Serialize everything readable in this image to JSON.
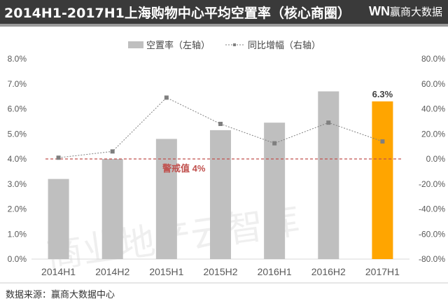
{
  "header": {
    "title": "2014H1-2017H1上海购物中心平均空置率（核心商圈）",
    "logo_mark": "WN",
    "logo_text": "赢商大数据"
  },
  "source": "数据来源：赢商大数据中心",
  "watermark": "商业地产云智库",
  "colors": {
    "bar": "#bfbfbf",
    "highlight": "#ffa500",
    "line": "#7f7f7f",
    "threshold": "#c0504d"
  },
  "chart_data": {
    "type": "bar",
    "title": "2014H1-2017H1上海购物中心平均空置率（核心商圈）",
    "categories": [
      "2014H1",
      "2014H2",
      "2015H1",
      "2015H2",
      "2016H1",
      "2016H2",
      "2017H1"
    ],
    "series": [
      {
        "name": "空置率（左轴）",
        "type": "bar",
        "axis": "left",
        "values": [
          3.2,
          4.0,
          4.8,
          5.15,
          5.45,
          6.7,
          6.3
        ]
      },
      {
        "name": "同比增幅（右轴）",
        "type": "line",
        "axis": "right",
        "values": [
          1,
          6,
          49,
          28,
          12.5,
          29,
          14
        ]
      }
    ],
    "left_axis": {
      "ylim": [
        0,
        8
      ],
      "ticks": [
        "0.0%",
        "1.0%",
        "2.0%",
        "3.0%",
        "4.0%",
        "5.0%",
        "6.0%",
        "7.0%",
        "8.0%"
      ]
    },
    "right_axis": {
      "ylim": [
        -80,
        80
      ],
      "ticks": [
        "-80.0%",
        "-60.0%",
        "-40.0%",
        "-20.0%",
        "0.0%",
        "20.0%",
        "40.0%",
        "60.0%",
        "80.0%"
      ]
    },
    "threshold": {
      "value": 4,
      "label": "警戒值 4%"
    },
    "data_labels": [
      {
        "index": 6,
        "text": "6.3%"
      }
    ],
    "legend": "top-center"
  }
}
